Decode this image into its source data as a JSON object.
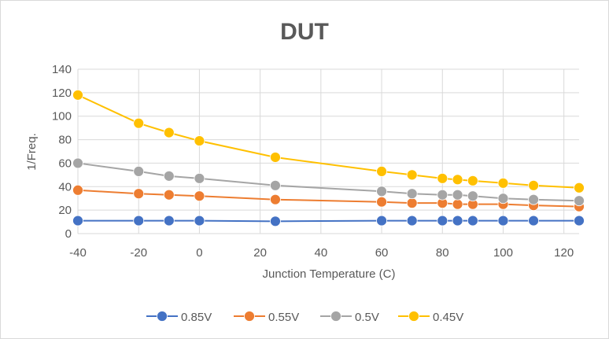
{
  "chart_data": {
    "type": "line",
    "title": "DUT",
    "xlabel": "Junction Temperature (C)",
    "ylabel": "1/Freq.",
    "xlim": [
      -40,
      125
    ],
    "ylim": [
      0,
      140
    ],
    "x_ticks": [
      -40,
      -20,
      0,
      20,
      40,
      60,
      80,
      100,
      120
    ],
    "y_ticks": [
      0,
      20,
      40,
      60,
      80,
      100,
      120,
      140
    ],
    "grid": true,
    "legend_position": "bottom",
    "x": [
      -40,
      -20,
      -10,
      0,
      25,
      60,
      70,
      80,
      85,
      90,
      100,
      110,
      125
    ],
    "series": [
      {
        "name": "0.85V",
        "color": "#4472C4",
        "values": [
          11,
          11,
          11,
          11,
          10.5,
          11,
          11,
          11,
          11,
          11,
          11,
          11,
          11
        ]
      },
      {
        "name": "0.55V",
        "color": "#ED7D31",
        "values": [
          37,
          34,
          33,
          32,
          29,
          27,
          26,
          26,
          25,
          25,
          25,
          24,
          23
        ]
      },
      {
        "name": "0.5V",
        "color": "#A5A5A5",
        "values": [
          60,
          53,
          49,
          47,
          41,
          36,
          34,
          33,
          33,
          32,
          30,
          29,
          28
        ]
      },
      {
        "name": "0.45V",
        "color": "#FFC000",
        "values": [
          118,
          94,
          86,
          79,
          65,
          53,
          50,
          47,
          46,
          45,
          43,
          41,
          39
        ]
      }
    ]
  }
}
